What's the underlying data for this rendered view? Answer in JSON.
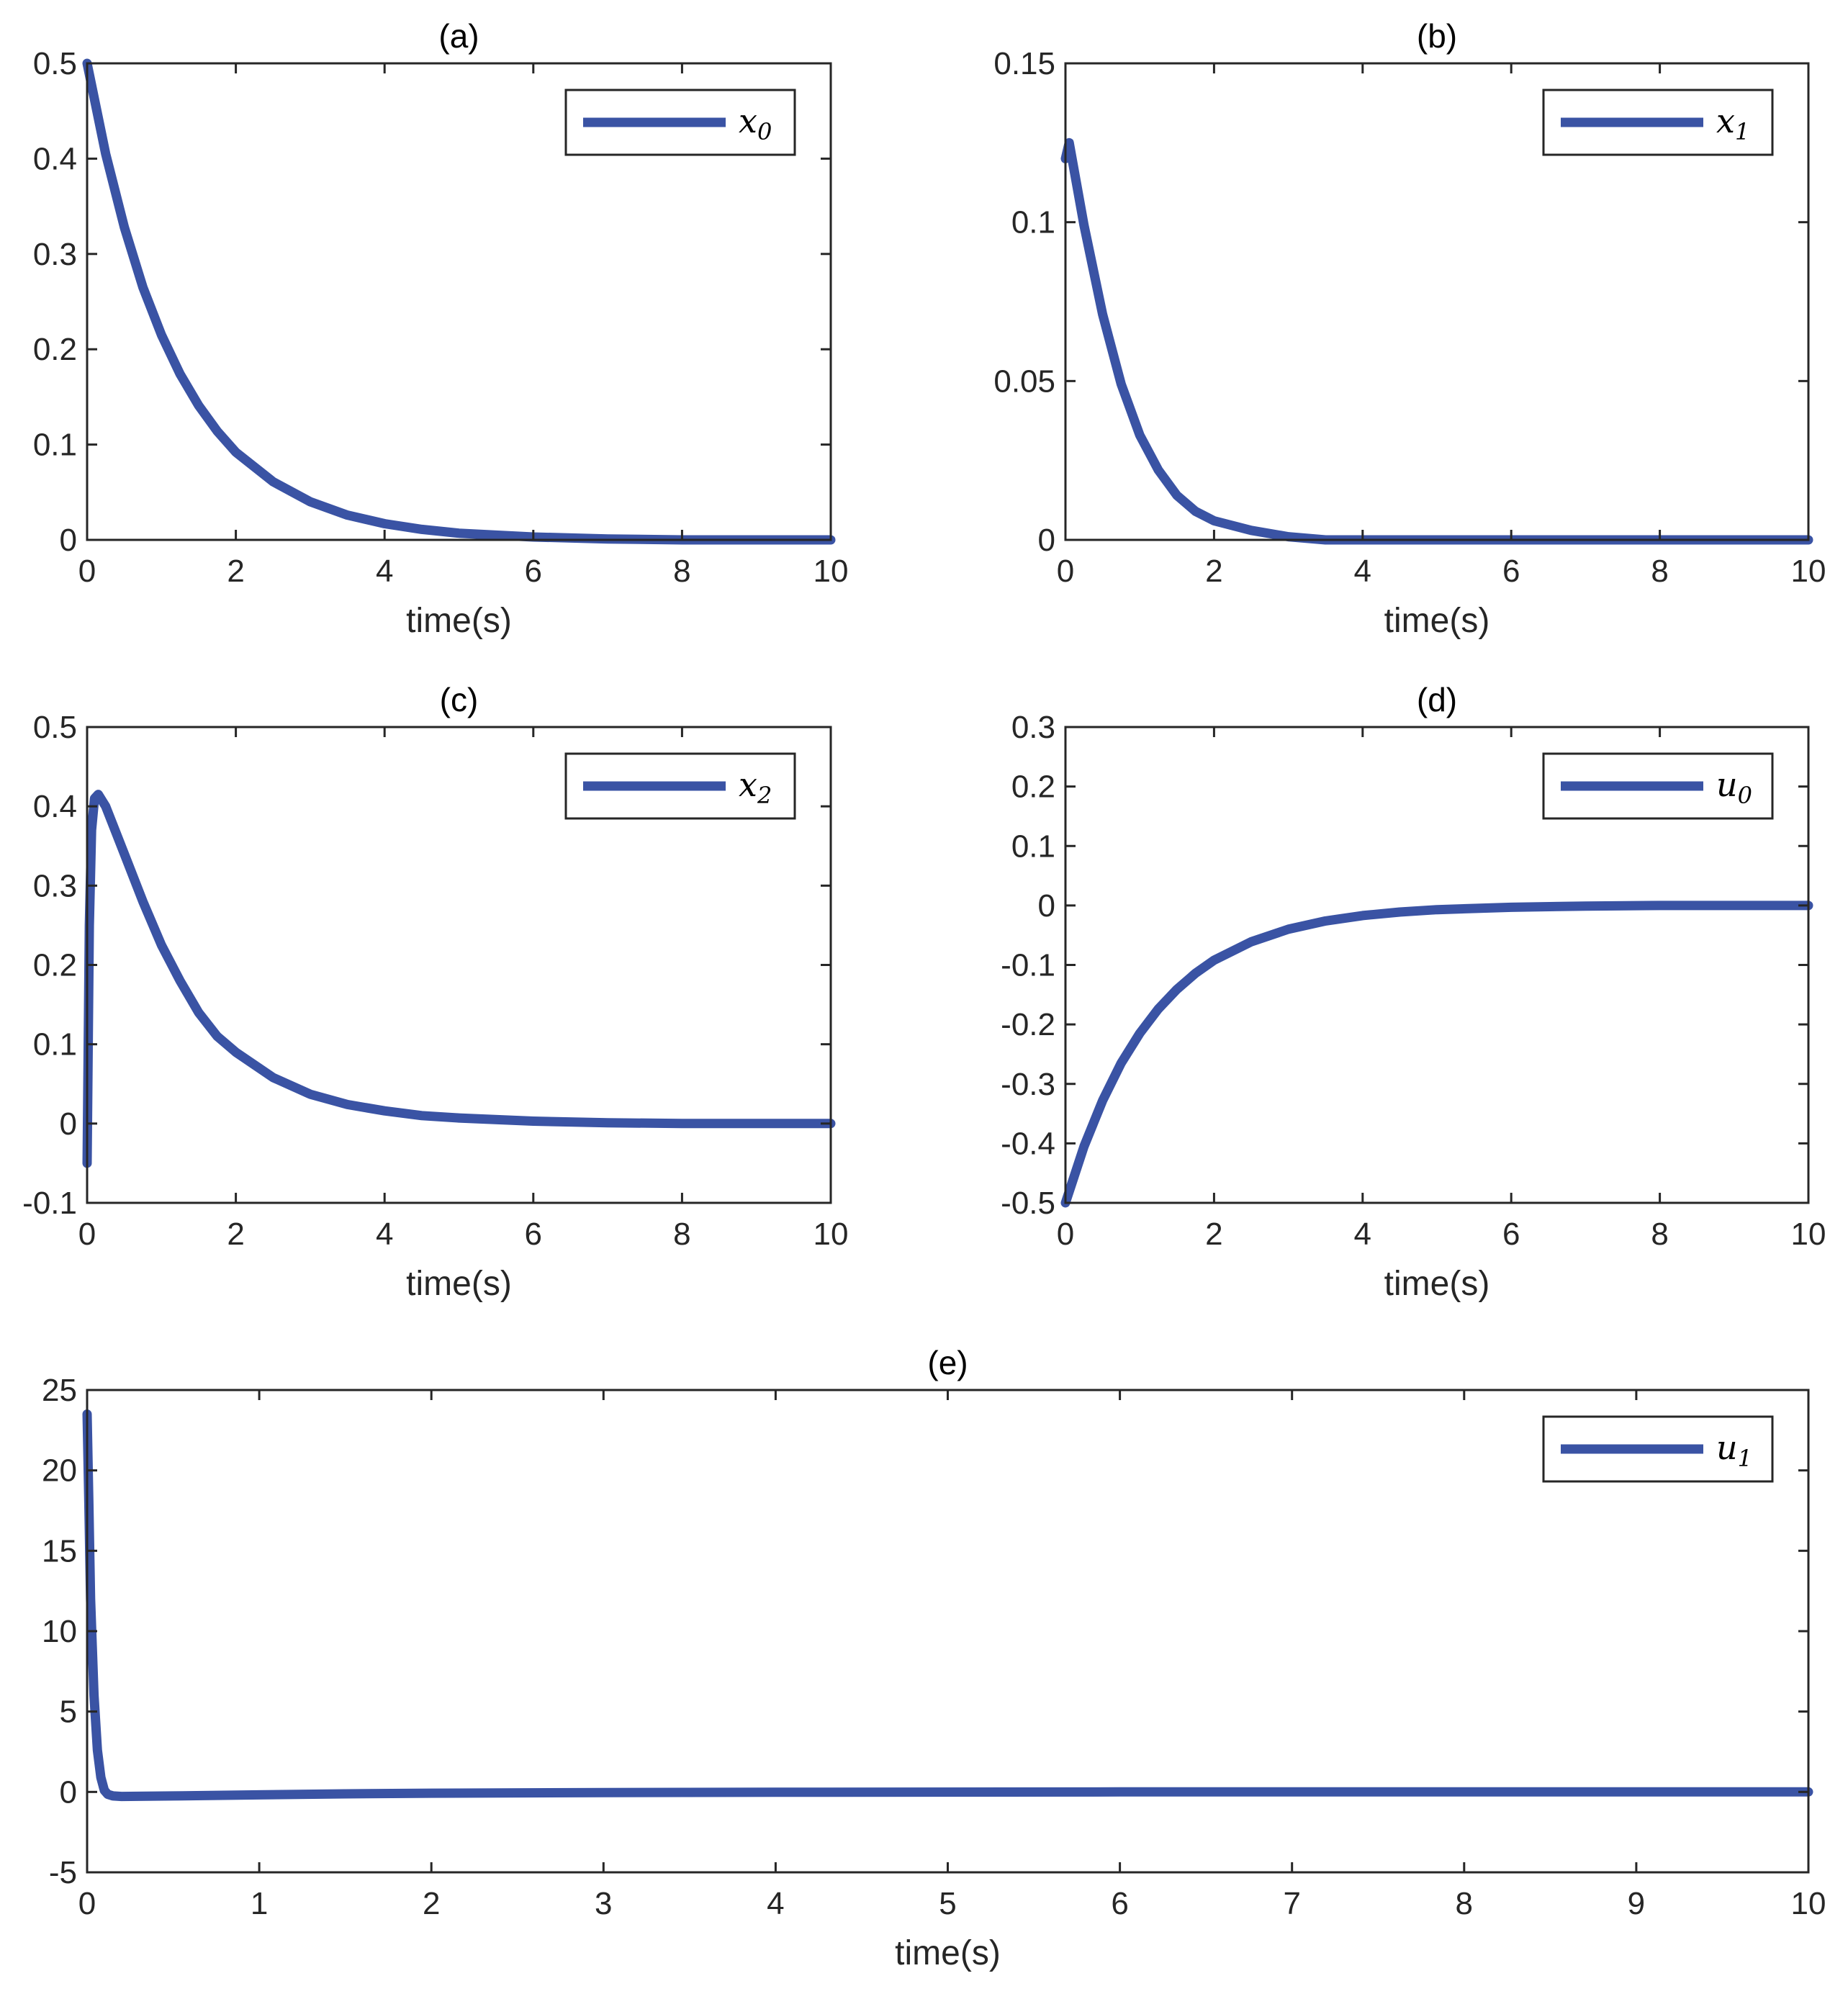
{
  "colors": {
    "series": "#3a53a4",
    "axis": "#262626"
  },
  "chart_data": [
    {
      "id": "a",
      "type": "line",
      "title": "(a)",
      "xlabel": "time(s)",
      "ylabel": "",
      "xlim": [
        0,
        10
      ],
      "ylim": [
        0,
        0.5
      ],
      "xticks": [
        0,
        2,
        4,
        6,
        8,
        10
      ],
      "xtick_labels": [
        "0",
        "2",
        "4",
        "6",
        "8",
        "10"
      ],
      "yticks": [
        0,
        0.1,
        0.2,
        0.3,
        0.4,
        0.5
      ],
      "ytick_labels": [
        "0",
        "0.1",
        "0.2",
        "0.3",
        "0.4",
        "0.5"
      ],
      "legend": {
        "main": "x",
        "sub": "0",
        "placement": "top-right"
      },
      "series": [
        {
          "name": "x0",
          "x": [
            0,
            0.25,
            0.5,
            0.75,
            1,
            1.25,
            1.5,
            1.75,
            2,
            2.5,
            3,
            3.5,
            4,
            4.5,
            5,
            6,
            7,
            8,
            9,
            10
          ],
          "y": [
            0.5,
            0.405,
            0.328,
            0.265,
            0.215,
            0.174,
            0.141,
            0.114,
            0.092,
            0.061,
            0.04,
            0.026,
            0.017,
            0.011,
            0.007,
            0.003,
            0.001,
            0,
            0,
            0
          ]
        }
      ]
    },
    {
      "id": "b",
      "type": "line",
      "title": "(b)",
      "xlabel": "time(s)",
      "ylabel": "",
      "xlim": [
        0,
        10
      ],
      "ylim": [
        0,
        0.15
      ],
      "xticks": [
        0,
        2,
        4,
        6,
        8,
        10
      ],
      "xtick_labels": [
        "0",
        "2",
        "4",
        "6",
        "8",
        "10"
      ],
      "yticks": [
        0,
        0.05,
        0.1,
        0.15
      ],
      "ytick_labels": [
        "0",
        "0.05",
        "0.1",
        "0.15"
      ],
      "legend": {
        "main": "x",
        "sub": "1",
        "placement": "top-right"
      },
      "series": [
        {
          "name": "x1",
          "x": [
            0,
            0.05,
            0.25,
            0.5,
            0.75,
            1,
            1.25,
            1.5,
            1.75,
            2,
            2.5,
            3,
            3.5,
            4,
            5,
            6,
            8,
            10
          ],
          "y": [
            0.12,
            0.125,
            0.099,
            0.071,
            0.049,
            0.033,
            0.022,
            0.014,
            0.009,
            0.006,
            0.003,
            0.001,
            0,
            0,
            0,
            0,
            0,
            0
          ]
        }
      ]
    },
    {
      "id": "c",
      "type": "line",
      "title": "(c)",
      "xlabel": "time(s)",
      "ylabel": "",
      "xlim": [
        0,
        10
      ],
      "ylim": [
        -0.1,
        0.5
      ],
      "xticks": [
        0,
        2,
        4,
        6,
        8,
        10
      ],
      "xtick_labels": [
        "0",
        "2",
        "4",
        "6",
        "8",
        "10"
      ],
      "yticks": [
        -0.1,
        0,
        0.1,
        0.2,
        0.3,
        0.4,
        0.5
      ],
      "ytick_labels": [
        "-0.1",
        "0",
        "0.1",
        "0.2",
        "0.3",
        "0.4",
        "0.5"
      ],
      "legend": {
        "main": "x",
        "sub": "2",
        "placement": "top-right"
      },
      "series": [
        {
          "name": "x2",
          "x": [
            0,
            0.03,
            0.06,
            0.1,
            0.15,
            0.25,
            0.5,
            0.75,
            1,
            1.25,
            1.5,
            1.75,
            2,
            2.5,
            3,
            3.5,
            4,
            4.5,
            5,
            6,
            7,
            8,
            10
          ],
          "y": [
            -0.05,
            0.25,
            0.37,
            0.41,
            0.415,
            0.4,
            0.34,
            0.28,
            0.225,
            0.18,
            0.14,
            0.11,
            0.09,
            0.058,
            0.037,
            0.024,
            0.016,
            0.01,
            0.007,
            0.003,
            0.001,
            0,
            0
          ]
        }
      ]
    },
    {
      "id": "d",
      "type": "line",
      "title": "(d)",
      "xlabel": "time(s)",
      "ylabel": "",
      "xlim": [
        0,
        10
      ],
      "ylim": [
        -0.5,
        0.3
      ],
      "xticks": [
        0,
        2,
        4,
        6,
        8,
        10
      ],
      "xtick_labels": [
        "0",
        "2",
        "4",
        "6",
        "8",
        "10"
      ],
      "yticks": [
        -0.5,
        -0.4,
        -0.3,
        -0.2,
        -0.1,
        0,
        0.1,
        0.2,
        0.3
      ],
      "ytick_labels": [
        "-0.5",
        "-0.4",
        "-0.3",
        "-0.2",
        "-0.1",
        "0",
        "0.1",
        "0.2",
        "0.3"
      ],
      "legend": {
        "main": "u",
        "sub": "0",
        "placement": "top-right"
      },
      "series": [
        {
          "name": "u0",
          "x": [
            0,
            0.25,
            0.5,
            0.75,
            1,
            1.25,
            1.5,
            1.75,
            2,
            2.5,
            3,
            3.5,
            4,
            4.5,
            5,
            6,
            7,
            8,
            9,
            10
          ],
          "y": [
            -0.5,
            -0.405,
            -0.328,
            -0.265,
            -0.215,
            -0.174,
            -0.141,
            -0.114,
            -0.092,
            -0.061,
            -0.04,
            -0.026,
            -0.017,
            -0.011,
            -0.007,
            -0.003,
            -0.001,
            0,
            0,
            0
          ]
        }
      ]
    },
    {
      "id": "e",
      "type": "line",
      "title": "(e)",
      "xlabel": "time(s)",
      "ylabel": "",
      "xlim": [
        0,
        10
      ],
      "ylim": [
        -5,
        25
      ],
      "xticks": [
        0,
        1,
        2,
        3,
        4,
        5,
        6,
        7,
        8,
        9,
        10
      ],
      "xtick_labels": [
        "0",
        "1",
        "2",
        "3",
        "4",
        "5",
        "6",
        "7",
        "8",
        "9",
        "10"
      ],
      "yticks": [
        -5,
        0,
        5,
        10,
        15,
        20,
        25
      ],
      "ytick_labels": [
        "-5",
        "0",
        "5",
        "10",
        "15",
        "20",
        "25"
      ],
      "legend": {
        "main": "u",
        "sub": "1",
        "placement": "top-right"
      },
      "series": [
        {
          "name": "u1",
          "x": [
            0,
            0.01,
            0.02,
            0.04,
            0.06,
            0.08,
            0.1,
            0.12,
            0.15,
            0.2,
            0.3,
            0.5,
            1,
            1.5,
            2,
            3,
            4,
            6,
            8,
            10
          ],
          "y": [
            23.5,
            18,
            12,
            6,
            2.6,
            0.9,
            0.1,
            -0.15,
            -0.25,
            -0.28,
            -0.27,
            -0.25,
            -0.18,
            -0.12,
            -0.08,
            -0.04,
            -0.02,
            0,
            0,
            0
          ]
        }
      ]
    }
  ]
}
